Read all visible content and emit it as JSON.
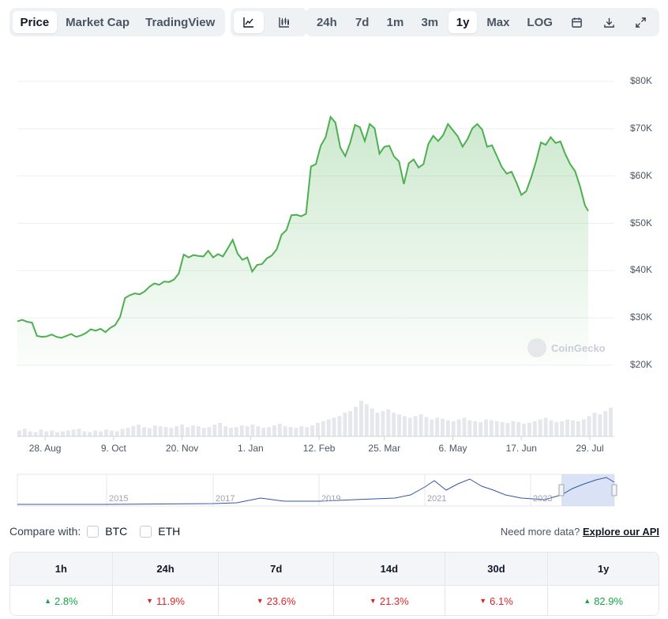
{
  "toolbar": {
    "view_tabs": [
      {
        "label": "Price",
        "active": true
      },
      {
        "label": "Market Cap",
        "active": false
      },
      {
        "label": "TradingView",
        "active": false
      }
    ],
    "chart_types": [
      {
        "icon": "line-chart-icon",
        "active": true
      },
      {
        "icon": "candlestick-chart-icon",
        "active": false
      }
    ],
    "ranges": [
      {
        "label": "24h",
        "active": false
      },
      {
        "label": "7d",
        "active": false
      },
      {
        "label": "1m",
        "active": false
      },
      {
        "label": "3m",
        "active": false
      },
      {
        "label": "1y",
        "active": true
      },
      {
        "label": "Max",
        "active": false
      },
      {
        "label": "LOG",
        "active": false
      }
    ],
    "tools": [
      "calendar-icon",
      "download-icon",
      "expand-icon"
    ]
  },
  "chart_data": {
    "type": "area",
    "title": "",
    "xlabel": "",
    "ylabel": "",
    "y_tick_labels": [
      "$80K",
      "$70K",
      "$60K",
      "$50K",
      "$40K",
      "$30K",
      "$20K"
    ],
    "y_ticks": [
      80000,
      70000,
      60000,
      50000,
      40000,
      30000,
      20000
    ],
    "ylim": [
      20000,
      80000
    ],
    "x_tick_labels": [
      "28. Aug",
      "9. Oct",
      "20. Nov",
      "1. Jan",
      "12. Feb",
      "25. Mar",
      "6. May",
      "17. Jun",
      "29. Jul"
    ],
    "x_tick_positions": [
      17,
      59,
      101,
      143,
      185,
      225,
      267,
      309,
      351
    ],
    "x_range_days": [
      0,
      366
    ],
    "series": [
      {
        "line_color": "#4caf50",
        "fill_color": "#4caf50",
        "points": [
          [
            0,
            29300
          ],
          [
            3,
            29600
          ],
          [
            6,
            29200
          ],
          [
            9,
            29000
          ],
          [
            12,
            26200
          ],
          [
            15,
            26000
          ],
          [
            18,
            26100
          ],
          [
            21,
            26500
          ],
          [
            24,
            26000
          ],
          [
            27,
            25800
          ],
          [
            30,
            26200
          ],
          [
            33,
            26600
          ],
          [
            36,
            26000
          ],
          [
            39,
            26300
          ],
          [
            42,
            26800
          ],
          [
            45,
            27600
          ],
          [
            48,
            27300
          ],
          [
            51,
            27700
          ],
          [
            54,
            27000
          ],
          [
            57,
            27900
          ],
          [
            60,
            28500
          ],
          [
            63,
            30200
          ],
          [
            66,
            34200
          ],
          [
            69,
            34800
          ],
          [
            72,
            35200
          ],
          [
            75,
            35000
          ],
          [
            78,
            35600
          ],
          [
            81,
            36600
          ],
          [
            84,
            37300
          ],
          [
            87,
            37000
          ],
          [
            90,
            37700
          ],
          [
            93,
            37600
          ],
          [
            96,
            38100
          ],
          [
            99,
            39400
          ],
          [
            102,
            43400
          ],
          [
            105,
            42800
          ],
          [
            108,
            43300
          ],
          [
            111,
            43100
          ],
          [
            114,
            43000
          ],
          [
            117,
            44200
          ],
          [
            120,
            42800
          ],
          [
            123,
            43500
          ],
          [
            126,
            43000
          ],
          [
            129,
            44700
          ],
          [
            132,
            46500
          ],
          [
            135,
            43600
          ],
          [
            138,
            42300
          ],
          [
            141,
            42800
          ],
          [
            144,
            39800
          ],
          [
            147,
            41200
          ],
          [
            150,
            41400
          ],
          [
            153,
            42600
          ],
          [
            156,
            43200
          ],
          [
            159,
            44500
          ],
          [
            162,
            47600
          ],
          [
            165,
            48600
          ],
          [
            168,
            51700
          ],
          [
            171,
            51800
          ],
          [
            174,
            51500
          ],
          [
            177,
            52000
          ],
          [
            180,
            62000
          ],
          [
            183,
            62500
          ],
          [
            186,
            66400
          ],
          [
            189,
            68200
          ],
          [
            192,
            72500
          ],
          [
            195,
            71300
          ],
          [
            198,
            66000
          ],
          [
            201,
            64200
          ],
          [
            204,
            67000
          ],
          [
            207,
            70800
          ],
          [
            210,
            70300
          ],
          [
            213,
            67400
          ],
          [
            216,
            71000
          ],
          [
            219,
            70100
          ],
          [
            222,
            64700
          ],
          [
            225,
            66200
          ],
          [
            228,
            66400
          ],
          [
            231,
            64100
          ],
          [
            234,
            63100
          ],
          [
            237,
            58300
          ],
          [
            240,
            62700
          ],
          [
            243,
            63500
          ],
          [
            246,
            61800
          ],
          [
            249,
            62500
          ],
          [
            252,
            66800
          ],
          [
            255,
            68500
          ],
          [
            258,
            67400
          ],
          [
            261,
            68600
          ],
          [
            264,
            71000
          ],
          [
            267,
            69700
          ],
          [
            270,
            68400
          ],
          [
            273,
            66200
          ],
          [
            276,
            67800
          ],
          [
            279,
            70100
          ],
          [
            282,
            71000
          ],
          [
            285,
            69800
          ],
          [
            288,
            66200
          ],
          [
            291,
            66500
          ],
          [
            294,
            64200
          ],
          [
            297,
            61900
          ],
          [
            300,
            60500
          ],
          [
            303,
            60900
          ],
          [
            306,
            58600
          ],
          [
            309,
            56000
          ],
          [
            312,
            56800
          ],
          [
            315,
            59700
          ],
          [
            318,
            63100
          ],
          [
            321,
            67100
          ],
          [
            324,
            66600
          ],
          [
            327,
            68200
          ],
          [
            330,
            67000
          ],
          [
            333,
            67300
          ],
          [
            336,
            64600
          ],
          [
            339,
            62500
          ],
          [
            342,
            61000
          ],
          [
            345,
            57800
          ],
          [
            348,
            53800
          ],
          [
            350,
            52600
          ]
        ]
      }
    ],
    "volume": [
      7,
      9,
      6,
      5,
      8,
      6,
      7,
      5,
      6,
      7,
      8,
      9,
      6,
      5,
      7,
      6,
      8,
      7,
      6,
      9,
      10,
      12,
      14,
      11,
      10,
      13,
      12,
      11,
      10,
      12,
      14,
      11,
      13,
      12,
      10,
      11,
      14,
      16,
      12,
      10,
      11,
      13,
      12,
      14,
      12,
      10,
      11,
      13,
      15,
      12,
      11,
      10,
      12,
      11,
      13,
      16,
      18,
      20,
      22,
      24,
      28,
      30,
      35,
      42,
      38,
      33,
      28,
      30,
      32,
      28,
      26,
      24,
      22,
      24,
      26,
      23,
      20,
      22,
      21,
      19,
      18,
      20,
      22,
      19,
      18,
      17,
      20,
      19,
      18,
      17,
      16,
      18,
      17,
      15,
      16,
      18,
      20,
      22,
      19,
      17,
      18,
      20,
      19,
      18,
      20,
      24,
      28,
      26,
      30,
      34
    ],
    "grid": true,
    "legend": "none"
  },
  "navigator": {
    "year_labels": [
      "2015",
      "2017",
      "2019",
      "2021",
      "2023"
    ],
    "line_color": "#3454a4",
    "selection_color": "#cfdcf3"
  },
  "watermark": "CoinGecko",
  "compare": {
    "label": "Compare with:",
    "options": [
      "BTC",
      "ETH"
    ],
    "more_text": "Need more data?",
    "api_link": "Explore our API"
  },
  "performance": [
    {
      "period": "1h",
      "value": "2.8%",
      "dir": "up"
    },
    {
      "period": "24h",
      "value": "11.9%",
      "dir": "down"
    },
    {
      "period": "7d",
      "value": "23.6%",
      "dir": "down"
    },
    {
      "period": "14d",
      "value": "21.3%",
      "dir": "down"
    },
    {
      "period": "30d",
      "value": "6.1%",
      "dir": "down"
    },
    {
      "period": "1y",
      "value": "82.9%",
      "dir": "up"
    }
  ]
}
